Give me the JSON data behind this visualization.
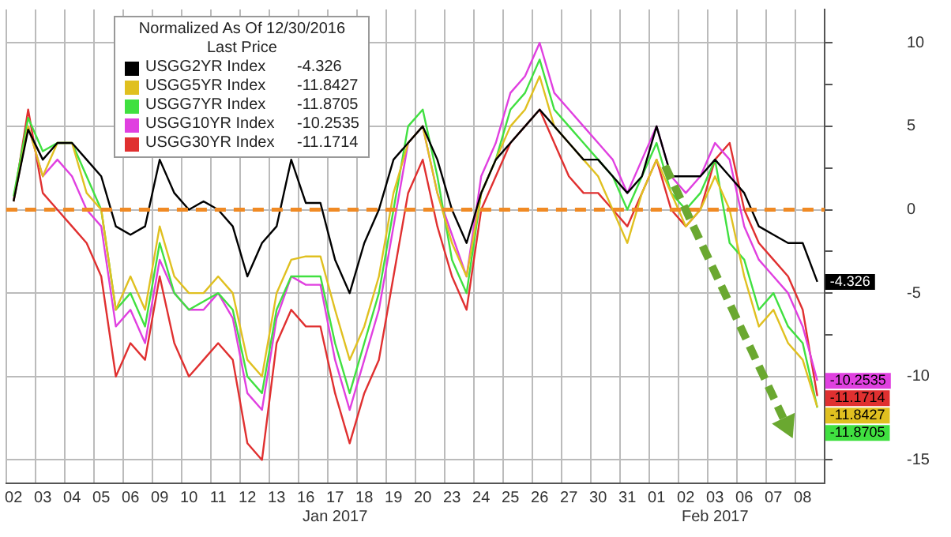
{
  "chart_data": {
    "type": "line",
    "legend_title": "Normalized As Of 12/30/2016\nLast Price",
    "legend": "top left",
    "grid": true,
    "marker": "none",
    "line_style": "solid",
    "categories": [
      "02",
      null,
      "03",
      null,
      "04",
      null,
      "05",
      null,
      "06",
      null,
      "09",
      null,
      "10",
      null,
      "11",
      null,
      "12",
      null,
      "13",
      null,
      "16",
      null,
      "17\nJan 2017",
      null,
      "18",
      null,
      "19",
      null,
      "20",
      null,
      "23",
      null,
      "24",
      null,
      "25",
      null,
      "26",
      null,
      "27",
      null,
      "30",
      null,
      "31",
      null,
      "01",
      null,
      "02",
      null,
      "03\nFeb 2017",
      null,
      "06",
      null,
      "07",
      null,
      "08",
      null
    ],
    "ylim": [
      -16.4,
      12
    ],
    "yticks": [
      -15,
      {
        "value": -12.5,
        "label": null
      },
      -10,
      {
        "value": -7.5,
        "label": null
      },
      -5,
      {
        "value": -2.5,
        "label": null
      },
      0,
      {
        "value": 2.5,
        "label": null
      },
      5,
      {
        "value": 7.5,
        "label": null
      },
      10
    ],
    "ref_lines": [
      {
        "axis": "y",
        "value": 0,
        "label": null,
        "color": "#f08a24",
        "line_style": "dashed"
      }
    ],
    "series": [
      {
        "name": "USGG2YR Index",
        "color": "#000000",
        "value_labels": [
          null,
          null,
          null,
          null,
          null,
          null,
          null,
          null,
          null,
          null,
          null,
          null,
          null,
          null,
          null,
          null,
          null,
          null,
          null,
          null,
          null,
          null,
          null,
          null,
          null,
          null,
          null,
          null,
          null,
          null,
          null,
          null,
          null,
          null,
          null,
          null,
          null,
          null,
          null,
          null,
          null,
          null,
          null,
          null,
          null,
          null,
          null,
          null,
          null,
          null,
          null,
          null,
          null,
          null,
          null,
          "-4.326"
        ],
        "values": [
          0.5,
          4.8,
          3,
          4,
          4,
          3,
          2,
          -1,
          -1.5,
          -1,
          3,
          1,
          0,
          0.5,
          0,
          -1,
          -4,
          -2,
          -1,
          3,
          0.4,
          0.4,
          -3,
          -5,
          -2,
          0,
          3,
          4,
          5,
          3,
          0,
          -2,
          1,
          3,
          4,
          5,
          6,
          5,
          4,
          3,
          3,
          2,
          1,
          2,
          5,
          2,
          2,
          2,
          3,
          2,
          1,
          -1,
          -1.5,
          -2,
          -2,
          -4.326
        ]
      },
      {
        "name": "USGG5YR Index",
        "color": "#e0c020",
        "value_labels": [
          null,
          null,
          null,
          null,
          null,
          null,
          null,
          null,
          null,
          null,
          null,
          null,
          null,
          null,
          null,
          null,
          null,
          null,
          null,
          null,
          null,
          null,
          null,
          null,
          null,
          null,
          null,
          null,
          null,
          null,
          null,
          null,
          null,
          null,
          null,
          null,
          null,
          null,
          null,
          null,
          null,
          null,
          null,
          null,
          null,
          null,
          null,
          null,
          null,
          null,
          null,
          null,
          null,
          null,
          null,
          "-11.8427"
        ],
        "values": [
          0.5,
          5,
          2,
          4,
          4,
          1,
          0,
          -6,
          -4,
          -6,
          -1,
          -4,
          -5,
          -5,
          -4,
          -5,
          -9,
          -10,
          -5,
          -3,
          -2.8,
          -2.8,
          -6,
          -9,
          -7,
          -4,
          1,
          4,
          5,
          1,
          -2,
          -4,
          1,
          3,
          5,
          6,
          8,
          5,
          4,
          3,
          2,
          0,
          -2,
          1,
          3,
          1,
          -1,
          0,
          2,
          0,
          -4,
          -7,
          -6,
          -8,
          -9,
          -11.8427
        ]
      },
      {
        "name": "USGG7YR Index",
        "color": "#40e040",
        "value_labels": [
          null,
          null,
          null,
          null,
          null,
          null,
          null,
          null,
          null,
          null,
          null,
          null,
          null,
          null,
          null,
          null,
          null,
          null,
          null,
          null,
          null,
          null,
          null,
          null,
          null,
          null,
          null,
          null,
          null,
          null,
          null,
          null,
          null,
          null,
          null,
          null,
          null,
          null,
          null,
          null,
          null,
          null,
          null,
          null,
          null,
          null,
          null,
          null,
          null,
          null,
          null,
          null,
          null,
          null,
          null,
          "-11.8705"
        ],
        "values": [
          0.8,
          5.5,
          3.5,
          4,
          4,
          2,
          0,
          -6,
          -5,
          -7,
          -2,
          -5,
          -6,
          -5.5,
          -5,
          -6,
          -10,
          -11,
          -6,
          -4,
          -4,
          -4,
          -8,
          -11,
          -8,
          -5,
          0,
          5,
          6,
          2,
          -3,
          -5,
          1,
          3,
          6,
          7,
          9,
          6,
          5,
          4,
          3,
          2,
          0,
          2,
          4,
          1,
          0,
          1,
          3,
          -2,
          -3,
          -6,
          -5,
          -7,
          -8,
          -11.8705
        ]
      },
      {
        "name": "USGG10YR Index",
        "color": "#e040e0",
        "value_labels": [
          null,
          null,
          null,
          null,
          null,
          null,
          null,
          null,
          null,
          null,
          null,
          null,
          null,
          null,
          null,
          null,
          null,
          null,
          null,
          null,
          null,
          null,
          null,
          null,
          null,
          null,
          null,
          null,
          null,
          null,
          null,
          null,
          null,
          null,
          null,
          null,
          null,
          null,
          null,
          null,
          null,
          null,
          null,
          null,
          null,
          null,
          null,
          null,
          null,
          null,
          null,
          null,
          null,
          null,
          null,
          "-10.2535"
        ],
        "values": [
          0.5,
          5,
          2,
          3,
          2,
          0,
          -1,
          -7,
          -6,
          -8,
          -3,
          -5,
          -6,
          -6,
          -5,
          -6.5,
          -11,
          -12,
          -6.5,
          -4,
          -4.5,
          -4.5,
          -9,
          -12,
          -9,
          -6,
          -1,
          4,
          5,
          1,
          -1.5,
          -4,
          2,
          4,
          7,
          8,
          10,
          7,
          6,
          5,
          4,
          3,
          1,
          3,
          5,
          2,
          1,
          2,
          4,
          3,
          -1,
          -3,
          -4,
          -5,
          -7,
          -10.2535
        ]
      },
      {
        "name": "USGG30YR Index",
        "color": "#e03030",
        "value_labels": [
          null,
          null,
          null,
          null,
          null,
          null,
          null,
          null,
          null,
          null,
          null,
          null,
          null,
          null,
          null,
          null,
          null,
          null,
          null,
          null,
          null,
          null,
          null,
          null,
          null,
          null,
          null,
          null,
          null,
          null,
          null,
          null,
          null,
          null,
          null,
          null,
          null,
          null,
          null,
          null,
          null,
          null,
          null,
          null,
          null,
          null,
          null,
          null,
          null,
          null,
          null,
          null,
          null,
          null,
          null,
          "-11.1714"
        ],
        "values": [
          0.5,
          6,
          1,
          0,
          -1,
          -2,
          -4,
          -10,
          -8,
          -9,
          -4,
          -8,
          -10,
          -9,
          -8,
          -9,
          -14,
          -15,
          -8,
          -6,
          -7,
          -7,
          -11,
          -14,
          -11,
          -9,
          -4,
          1,
          3,
          -1,
          -4,
          -6,
          0,
          2,
          4,
          5,
          6,
          4,
          2,
          1,
          1,
          0,
          -1,
          1,
          3,
          0,
          -1,
          0,
          3,
          4,
          0,
          -2,
          -3,
          -4,
          -6,
          -11.1714
        ]
      }
    ]
  }
}
